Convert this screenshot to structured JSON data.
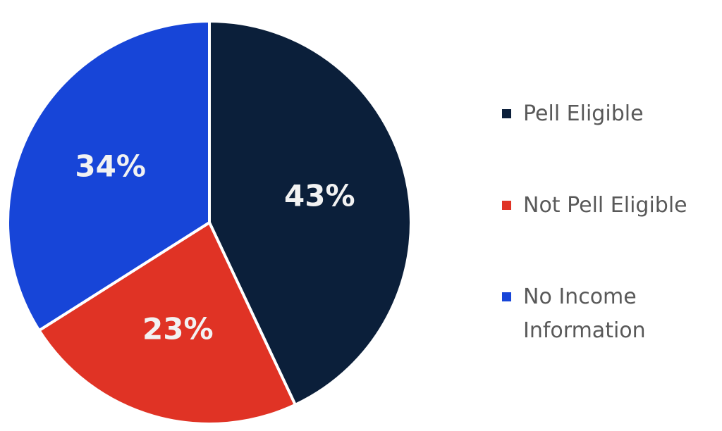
{
  "chart_data": {
    "type": "pie",
    "series": [
      {
        "values": [
          43,
          23,
          34
        ]
      }
    ],
    "categories": [
      "Pell Eligible",
      "Not Pell Eligible",
      "No Income Information"
    ],
    "data_labels": [
      "43%",
      "23%",
      "34%"
    ],
    "legend_position": "right",
    "colors": [
      "#0b1f3a",
      "#e03325",
      "#1745d8"
    ]
  }
}
